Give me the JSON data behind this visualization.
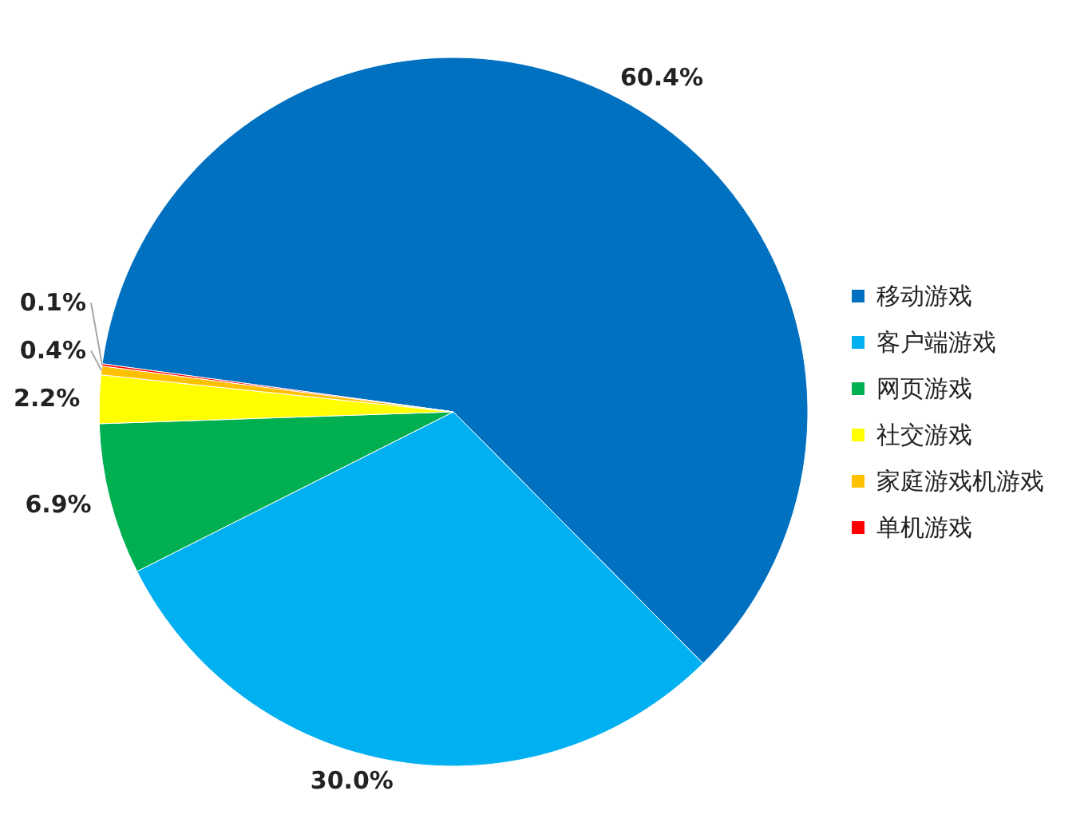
{
  "chart_data": {
    "type": "pie",
    "categories": [
      "移动游戏",
      "客户端游戏",
      "网页游戏",
      "社交游戏",
      "家庭游戏机游戏",
      "单机游戏"
    ],
    "values": [
      60.4,
      30.0,
      6.9,
      2.2,
      0.4,
      0.1
    ],
    "colors": [
      "#0070c0",
      "#00b0f0",
      "#00b050",
      "#ffff00",
      "#ffc000",
      "#ff0000"
    ],
    "value_labels": [
      "60.4%",
      "30.0%",
      "6.9%",
      "2.2%",
      "0.4%",
      "0.1%"
    ],
    "legend": "right"
  }
}
